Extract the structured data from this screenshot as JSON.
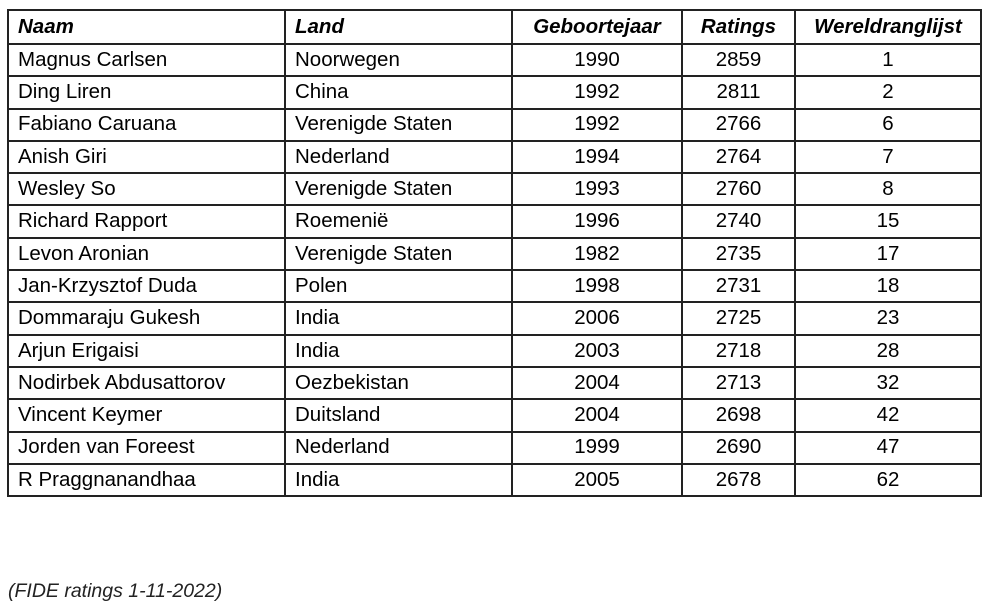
{
  "table": {
    "headers": [
      "Naam",
      "Land",
      "Geboortejaar",
      "Ratings",
      "Wereldranglijst"
    ],
    "rows": [
      [
        "Magnus Carlsen",
        "Noorwegen",
        "1990",
        "2859",
        "1"
      ],
      [
        "Ding Liren",
        "China",
        "1992",
        "2811",
        "2"
      ],
      [
        "Fabiano Caruana",
        "Verenigde Staten",
        "1992",
        "2766",
        "6"
      ],
      [
        "Anish Giri",
        "Nederland",
        "1994",
        "2764",
        "7"
      ],
      [
        "Wesley So",
        "Verenigde Staten",
        "1993",
        "2760",
        "8"
      ],
      [
        "Richard Rapport",
        "Roemenië",
        "1996",
        "2740",
        "15"
      ],
      [
        "Levon Aronian",
        "Verenigde Staten",
        "1982",
        "2735",
        "17"
      ],
      [
        "Jan-Krzysztof Duda",
        "Polen",
        "1998",
        "2731",
        "18"
      ],
      [
        "Dommaraju Gukesh",
        "India",
        "2006",
        "2725",
        "23"
      ],
      [
        "Arjun Erigaisi",
        "India",
        "2003",
        "2718",
        "28"
      ],
      [
        "Nodirbek Abdusattorov",
        "Oezbekistan",
        "2004",
        "2713",
        "32"
      ],
      [
        "Vincent Keymer",
        "Duitsland",
        "2004",
        "2698",
        "42"
      ],
      [
        "Jorden van Foreest",
        "Nederland",
        "1999",
        "2690",
        "47"
      ],
      [
        "R Praggnanandhaa",
        "India",
        "2005",
        "2678",
        "62"
      ]
    ]
  },
  "footnote": "(FIDE ratings 1-11-2022)"
}
